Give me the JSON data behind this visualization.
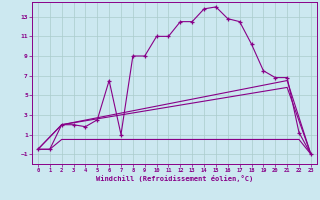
{
  "xlabel": "Windchill (Refroidissement éolien,°C)",
  "xlim": [
    -0.5,
    23.5
  ],
  "ylim": [
    -2.0,
    14.5
  ],
  "xticks": [
    0,
    1,
    2,
    3,
    4,
    5,
    6,
    7,
    8,
    9,
    10,
    11,
    12,
    13,
    14,
    15,
    16,
    17,
    18,
    19,
    20,
    21,
    22,
    23
  ],
  "yticks": [
    -1,
    1,
    3,
    5,
    7,
    9,
    11,
    13
  ],
  "background_color": "#cce8f0",
  "grid_color": "#aacccc",
  "line_color": "#880088",
  "lines": [
    {
      "x": [
        0,
        1,
        2,
        3,
        4,
        5,
        6,
        7,
        8,
        9,
        10,
        11,
        12,
        13,
        14,
        15,
        16,
        17,
        18,
        19,
        20,
        21,
        22,
        23
      ],
      "y": [
        -0.5,
        -0.5,
        2.0,
        2.0,
        1.8,
        2.5,
        6.5,
        1.0,
        9.0,
        9.0,
        11.0,
        11.0,
        12.5,
        12.5,
        13.8,
        14.0,
        12.8,
        12.5,
        10.2,
        7.5,
        6.8,
        6.8,
        1.2,
        -1.0
      ],
      "marker": "+",
      "linestyle": "-",
      "linewidth": 0.8,
      "markersize": 3.5
    },
    {
      "x": [
        0,
        2,
        21,
        23
      ],
      "y": [
        -0.5,
        2.0,
        6.5,
        -1.0
      ],
      "marker": null,
      "linestyle": "-",
      "linewidth": 0.8,
      "markersize": 0
    },
    {
      "x": [
        0,
        2,
        21,
        23
      ],
      "y": [
        -0.5,
        2.0,
        5.8,
        -1.0
      ],
      "marker": null,
      "linestyle": "-",
      "linewidth": 0.8,
      "markersize": 0
    },
    {
      "x": [
        0,
        1,
        2,
        3,
        4,
        5,
        6,
        7,
        8,
        9,
        10,
        11,
        12,
        13,
        14,
        15,
        16,
        17,
        18,
        19,
        20,
        21,
        22,
        23
      ],
      "y": [
        -0.5,
        -0.5,
        0.5,
        0.5,
        0.5,
        0.5,
        0.5,
        0.5,
        0.5,
        0.5,
        0.5,
        0.5,
        0.5,
        0.5,
        0.5,
        0.5,
        0.5,
        0.5,
        0.5,
        0.5,
        0.5,
        0.5,
        0.5,
        -1.0
      ],
      "marker": null,
      "linestyle": "-",
      "linewidth": 0.8,
      "markersize": 0
    }
  ]
}
